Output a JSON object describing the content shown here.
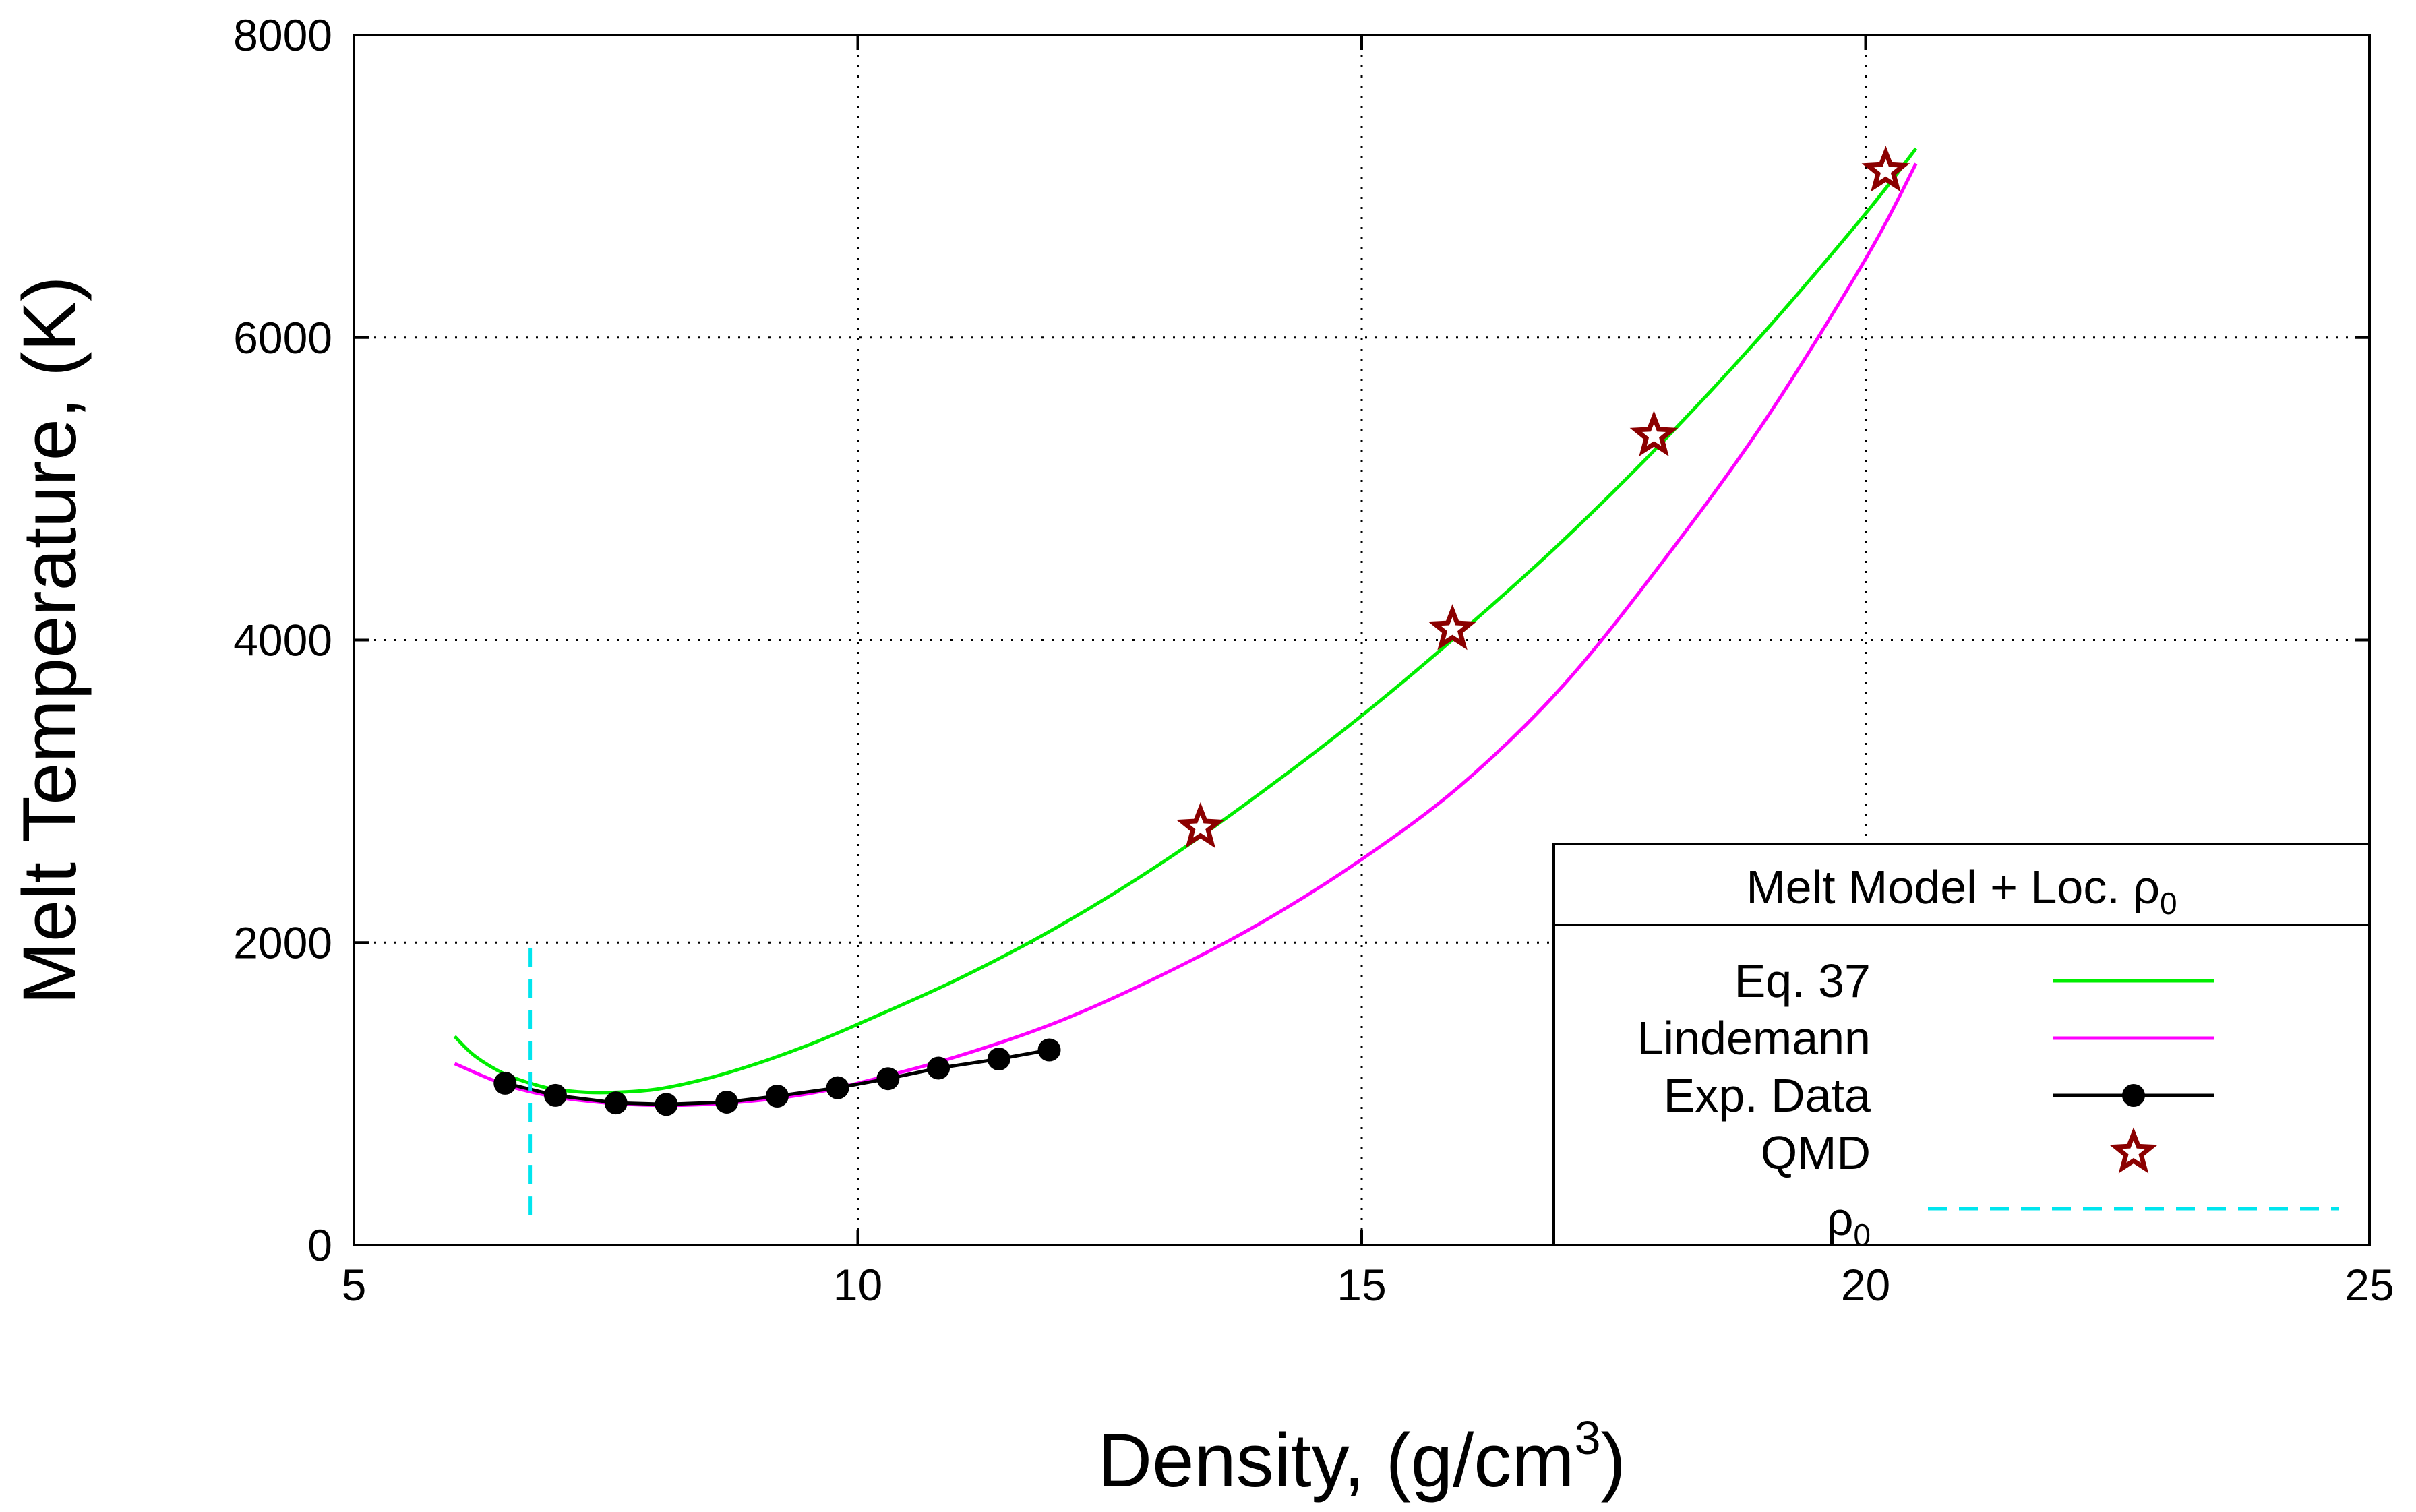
{
  "chart_data": {
    "type": "line",
    "xlabel": "Density, (g/cm",
    "xlabel_sup": "3",
    "xlabel_suffix": ")",
    "ylabel": "Melt Temperature, (K)",
    "xlim": [
      5,
      25
    ],
    "ylim": [
      0,
      8000
    ],
    "xticks": [
      5,
      10,
      15,
      20,
      25
    ],
    "yticks": [
      0,
      2000,
      4000,
      6000,
      8000
    ],
    "grid": "dotted",
    "legend": {
      "placement": "bottom-right",
      "title": "Melt Model + Loc. ρ",
      "title_sub": "0"
    },
    "series": [
      {
        "name": "Eq. 37",
        "kind": "line",
        "color": "#00ee00",
        "x": [
          6.0,
          6.2,
          6.5,
          6.8,
          7.0,
          7.3,
          7.6,
          8.0,
          8.5,
          9.0,
          9.5,
          10.0,
          11.0,
          12.0,
          13.0,
          14.0,
          15.0,
          16.0,
          17.0,
          18.0,
          19.0,
          20.0,
          20.5
        ],
        "y": [
          1380,
          1250,
          1130,
          1060,
          1030,
          1010,
          1010,
          1030,
          1100,
          1200,
          1320,
          1460,
          1760,
          2110,
          2520,
          2990,
          3500,
          4060,
          4660,
          5320,
          6040,
          6820,
          7250
        ]
      },
      {
        "name": "Lindemann",
        "kind": "line",
        "color": "#ff00ff",
        "x": [
          6.0,
          6.5,
          7.0,
          7.5,
          8.0,
          8.5,
          9.0,
          9.5,
          10.0,
          11.0,
          12.0,
          13.0,
          14.0,
          15.0,
          16.0,
          17.0,
          18.0,
          19.0,
          20.0,
          20.5
        ],
        "y": [
          1200,
          1060,
          980,
          940,
          925,
          930,
          955,
          1000,
          1070,
          1250,
          1480,
          1780,
          2130,
          2550,
          3050,
          3700,
          4530,
          5450,
          6520,
          7150
        ]
      },
      {
        "name": "Exp. Data",
        "kind": "line-marker",
        "color": "#000000",
        "x": [
          6.5,
          7.0,
          7.6,
          8.1,
          8.7,
          9.2,
          9.8,
          10.3,
          10.8,
          11.4,
          11.9
        ],
        "y": [
          1070,
          990,
          940,
          930,
          945,
          985,
          1040,
          1100,
          1170,
          1230,
          1290
        ]
      },
      {
        "name": "QMD",
        "kind": "star-marker",
        "color": "#8b0000",
        "x": [
          13.4,
          15.9,
          17.9,
          20.2
        ],
        "y": [
          2760,
          4070,
          5350,
          7100
        ]
      },
      {
        "name": "ρ",
        "name_sub": "0",
        "kind": "vline",
        "color": "#00e5ee",
        "x": 6.75,
        "y_range": [
          200,
          2000
        ]
      }
    ]
  }
}
